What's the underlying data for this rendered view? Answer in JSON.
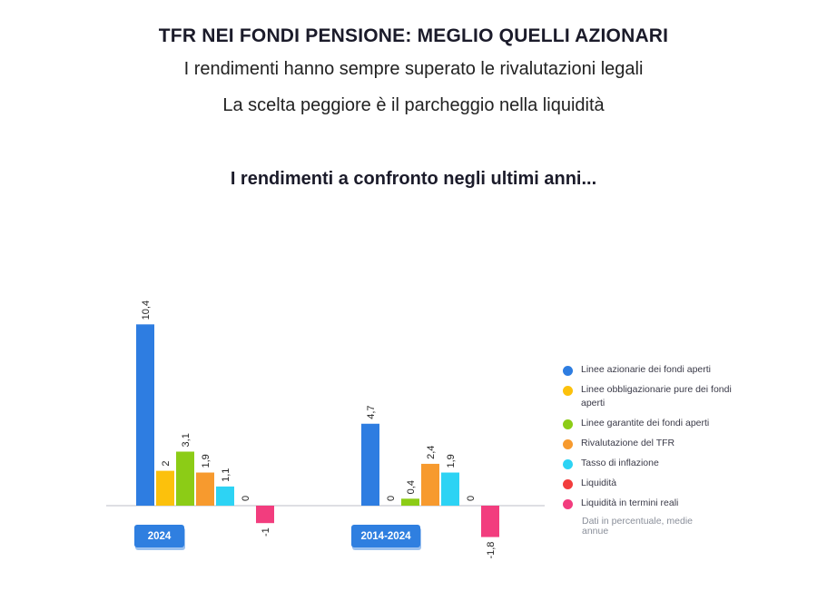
{
  "header": {
    "title": "TFR NEI FONDI PENSIONE: MEGLIO QUELLI AZIONARI",
    "subtitle_1": "I rendimenti hanno sempre superato le rivalutazioni legali",
    "subtitle_2": "La scelta peggiore è il parcheggio nella liquidità",
    "section_title": "I rendimenti a confronto negli ultimi anni..."
  },
  "colors": {
    "axis": "#c9ccd2",
    "badge": "#2f7fe0",
    "badge_shadow": "#9cc1ef"
  },
  "legend_note": "Dati in percentuale, medie annue",
  "chart_data": {
    "type": "bar",
    "categories": [
      "2024",
      "2014-2024"
    ],
    "series": [
      {
        "name": "Linee azionarie dei fondi aperti",
        "color": "#2e7de1",
        "values": [
          10.4,
          4.7
        ],
        "labels": [
          "10,4",
          "4,7"
        ]
      },
      {
        "name": "Linee obbligazionarie pure dei fondi aperti",
        "color": "#fcc10c",
        "values": [
          2,
          0
        ],
        "labels": [
          "2",
          "0"
        ]
      },
      {
        "name": "Linee garantite dei fondi aperti",
        "color": "#8ccc16",
        "values": [
          3.1,
          0.4
        ],
        "labels": [
          "3,1",
          "0,4"
        ]
      },
      {
        "name": "Rivalutazione del TFR",
        "color": "#f79a2e",
        "values": [
          1.9,
          2.4
        ],
        "labels": [
          "1,9",
          "2,4"
        ]
      },
      {
        "name": "Tasso di inflazione",
        "color": "#2dd3f4",
        "values": [
          1.1,
          1.9
        ],
        "labels": [
          "1,1",
          "1,9"
        ]
      },
      {
        "name": "Liquidità",
        "color": "#f23d3d",
        "values": [
          0,
          0
        ],
        "labels": [
          "0",
          "0"
        ]
      },
      {
        "name": "Liquidità in termini reali",
        "color": "#f23d7e",
        "values": [
          -1,
          -1.8
        ],
        "labels": [
          "-1",
          "-1,8"
        ]
      }
    ],
    "xlabel": "",
    "ylabel": "",
    "grid": false,
    "legend_position": "right"
  }
}
